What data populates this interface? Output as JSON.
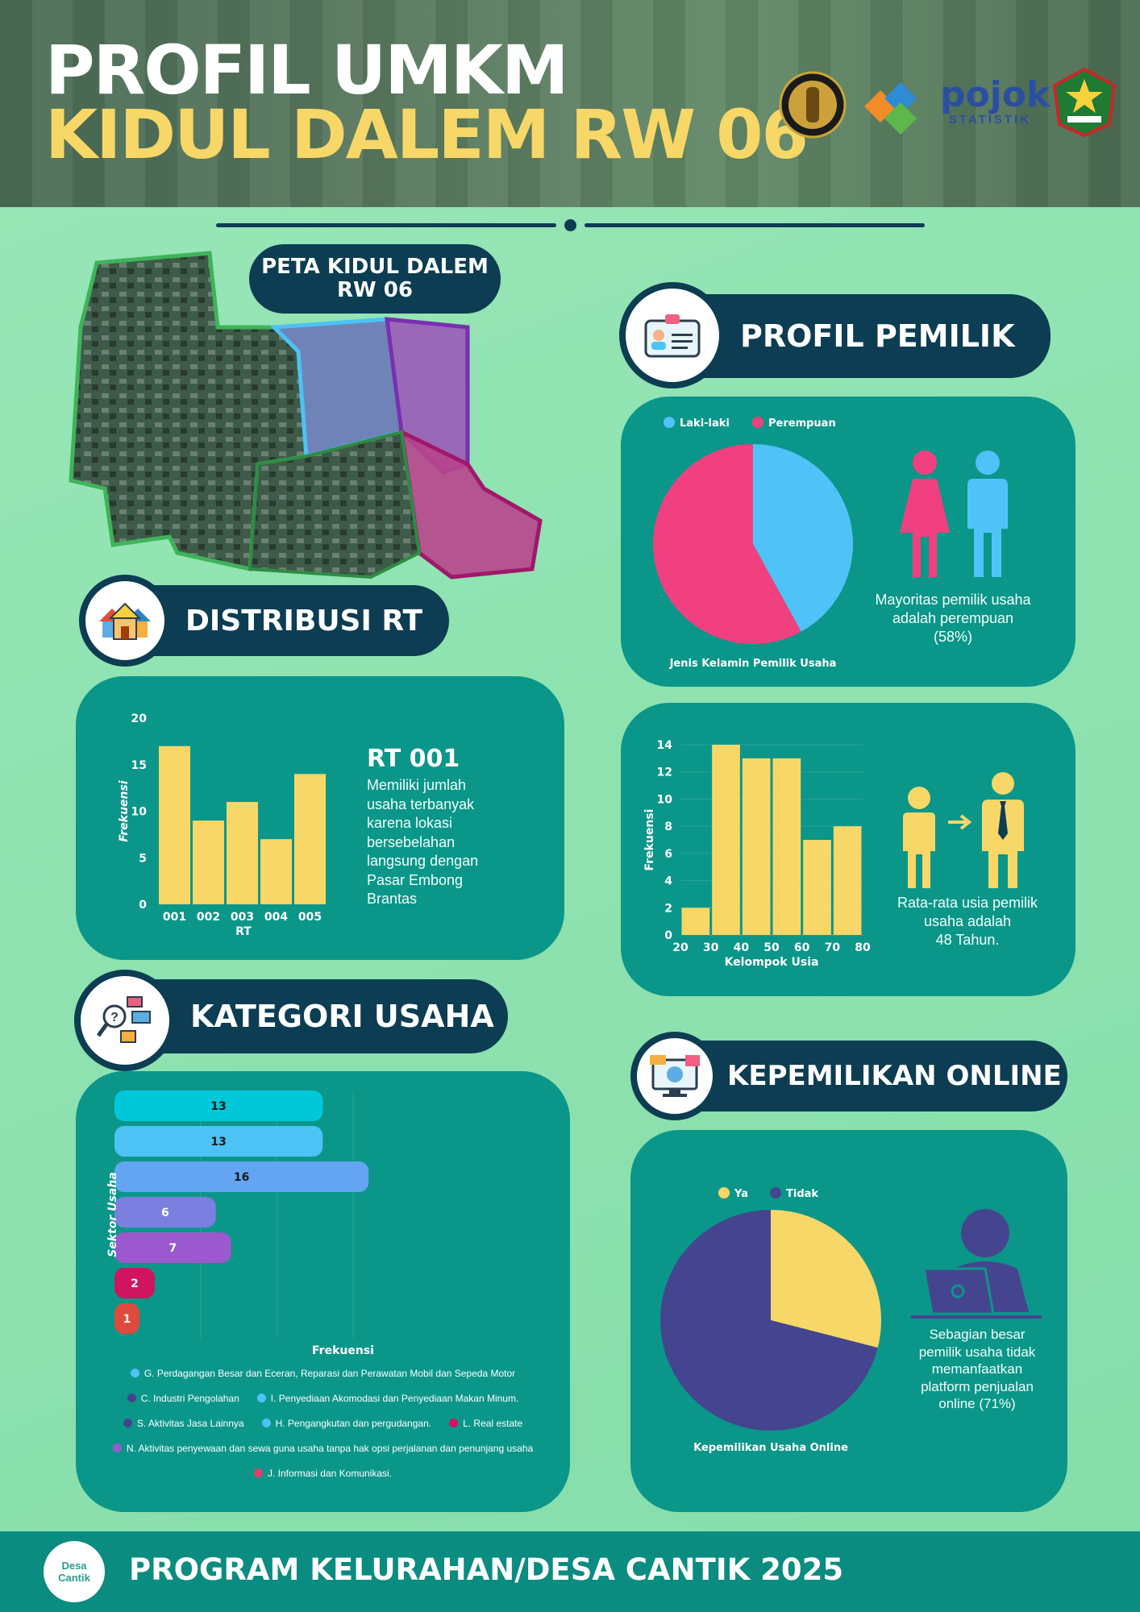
{
  "header": {
    "title_line1": "PROFIL UMKM",
    "title_line2": "KIDUL DALEM RW 06",
    "logos": [
      "universitas-brawijaya-logo",
      "bps-logo",
      "pojok-statistik-logo",
      "kota-malang-logo"
    ],
    "pojok_text": "pojok",
    "statistik_text": "STATISTIK"
  },
  "map": {
    "title_line1": "PETA KIDUL DALEM",
    "title_line2": "RW 06"
  },
  "sections": {
    "profil_pemilik": "PROFIL PEMILIK",
    "distribusi_rt": "DISTRIBUSI RT",
    "kategori_usaha": "KATEGORI USAHA",
    "kepemilikan_online": "KEPEMILIKAN ONLINE"
  },
  "gender": {
    "legend": [
      "Laki-laki",
      "Perempuan"
    ],
    "caption": "Jenis Kelamin Pemilik Usaha",
    "desc_line1": "Mayoritas pemilik usaha",
    "desc_line2": "adalah perempuan",
    "desc_line3": "(58%)"
  },
  "rt": {
    "highlight_title": "RT 001",
    "desc_lines": [
      "Memiliki jumlah",
      "usaha terbanyak",
      "karena  lokasi",
      "bersebelahan",
      "langsung dengan",
      "Pasar Embong",
      "Brantas"
    ]
  },
  "age": {
    "desc_line1": "Rata-rata usia pemilik",
    "desc_line2": "usaha adalah",
    "desc_line3": "48 Tahun."
  },
  "online": {
    "legend": [
      "Ya",
      "Tidak"
    ],
    "caption": "Kepemilikan Usaha Online",
    "desc_lines": [
      "Sebagian besar",
      "pemilik usaha tidak",
      "memanfaatkan",
      "platform penjualan",
      "online (71%)"
    ]
  },
  "kategori": {
    "legend_rows": [
      [
        "G. Perdagangan Besar dan Eceran, Reparasi dan Perawatan Mobil dan Sepeda Motor"
      ],
      [
        "C. Industri Pengolahan",
        "I. Penyediaan Akomodasi dan Penyediaan Makan Minum."
      ],
      [
        "S. Aktivitas Jasa Lainnya",
        "H. Pengangkutan dan pergudangan.",
        "L. Real estate"
      ],
      [
        "N. Aktivitas penyewaan dan sewa guna usaha tanpa hak opsi perjalanan dan penunjang usaha"
      ],
      [
        "J. Informasi dan Komunikasi."
      ]
    ]
  },
  "footer": {
    "text": "PROGRAM KELURAHAN/DESA CANTIK 2025",
    "logo_text1": "Desa",
    "logo_text2": "Cantik"
  },
  "chart_data": [
    {
      "type": "pie",
      "title": "Jenis Kelamin Pemilik Usaha",
      "labels": [
        "Laki-laki",
        "Perempuan"
      ],
      "values": [
        42,
        58
      ],
      "colors": [
        "#4fc3f7",
        "#f0407f"
      ]
    },
    {
      "type": "bar",
      "categories": [
        "001",
        "002",
        "003",
        "004",
        "005"
      ],
      "values": [
        17,
        9,
        11,
        7,
        14
      ],
      "xlabel": "RT",
      "ylabel": "Frekuensi",
      "ylim": [
        0,
        20
      ],
      "yticks": [
        0,
        5,
        10,
        15,
        20
      ],
      "color": "#f7d767"
    },
    {
      "type": "bar",
      "subtype": "histogram",
      "bin_edges": [
        20,
        30,
        40,
        50,
        60,
        70,
        80
      ],
      "values": [
        2,
        14,
        13,
        13,
        7,
        8
      ],
      "xticks": [
        20,
        30,
        40,
        50,
        60,
        70,
        80
      ],
      "xlabel": "Kelompok Usia",
      "ylabel": "Frekuensi",
      "ylim": [
        0,
        14
      ],
      "yticks": [
        0,
        2,
        4,
        6,
        8,
        10,
        12,
        14
      ],
      "color": "#f7d767"
    },
    {
      "type": "bar",
      "orientation": "horizontal",
      "ylabel": "Sektor Usaha",
      "xlabel": "Frekuensi",
      "xlim": [
        0,
        20
      ],
      "values": [
        13,
        13,
        16,
        6,
        7,
        2,
        1
      ],
      "colors": [
        "#00c8d8",
        "#4cc2f5",
        "#63a5f2",
        "#7b7fe0",
        "#9b59d0",
        "#d0145f",
        "#e04a3c"
      ]
    },
    {
      "type": "pie",
      "title": "Kepemilikan Usaha Online",
      "labels": [
        "Ya",
        "Tidak"
      ],
      "values": [
        29,
        71
      ],
      "colors": [
        "#f7d767",
        "#45458f"
      ]
    }
  ]
}
